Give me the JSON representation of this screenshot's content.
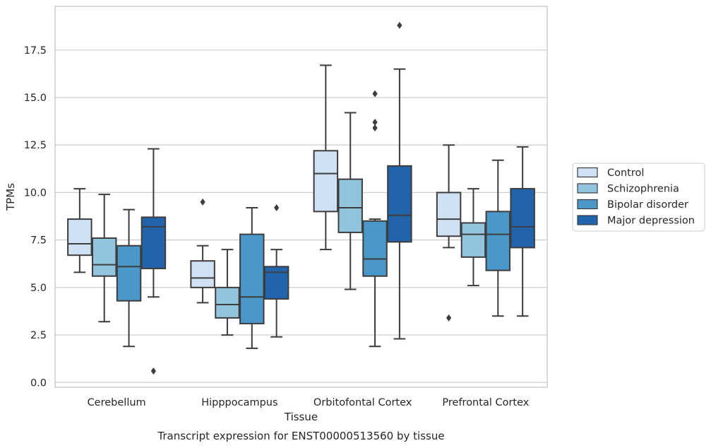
{
  "chart_data": {
    "type": "box",
    "title": "",
    "caption": "Transcript expression for ENST00000513560 by tissue",
    "xlabel": "Tissue",
    "ylabel": "TPMs",
    "ylim": [
      -0.25,
      19.8
    ],
    "yticks": [
      "0.0",
      "2.5",
      "5.0",
      "7.5",
      "10.0",
      "12.5",
      "15.0",
      "17.5"
    ],
    "grid": "horizontal",
    "legend_position": "right",
    "categories": [
      "Cerebellum",
      "Hipppocampus",
      "Orbitofontal Cortex",
      "Prefrontal Cortex"
    ],
    "series": [
      {
        "name": "Control",
        "color": "#cfe1f2",
        "boxes": [
          {
            "whisker_low": 5.8,
            "q1": 6.7,
            "median": 7.3,
            "q3": 8.6,
            "whisker_high": 10.2,
            "outliers": []
          },
          {
            "whisker_low": 4.2,
            "q1": 5.0,
            "median": 5.5,
            "q3": 6.4,
            "whisker_high": 7.2,
            "outliers": [
              9.5
            ]
          },
          {
            "whisker_low": 7.0,
            "q1": 9.0,
            "median": 11.0,
            "q3": 12.2,
            "whisker_high": 16.7,
            "outliers": []
          },
          {
            "whisker_low": 7.1,
            "q1": 7.7,
            "median": 8.6,
            "q3": 10.0,
            "whisker_high": 12.5,
            "outliers": [
              3.4
            ]
          }
        ]
      },
      {
        "name": "Schizophrenia",
        "color": "#93c4de",
        "boxes": [
          {
            "whisker_low": 3.2,
            "q1": 5.6,
            "median": 6.2,
            "q3": 7.6,
            "whisker_high": 9.9,
            "outliers": []
          },
          {
            "whisker_low": 2.5,
            "q1": 3.4,
            "median": 4.1,
            "q3": 5.0,
            "whisker_high": 7.0,
            "outliers": []
          },
          {
            "whisker_low": 4.9,
            "q1": 7.9,
            "median": 9.2,
            "q3": 10.7,
            "whisker_high": 14.2,
            "outliers": []
          },
          {
            "whisker_low": 5.1,
            "q1": 6.6,
            "median": 7.8,
            "q3": 8.4,
            "whisker_high": 10.2,
            "outliers": []
          }
        ]
      },
      {
        "name": "Bipolar disorder",
        "color": "#4a98c9",
        "boxes": [
          {
            "whisker_low": 1.9,
            "q1": 4.3,
            "median": 6.1,
            "q3": 7.2,
            "whisker_high": 9.1,
            "outliers": []
          },
          {
            "whisker_low": 1.8,
            "q1": 3.1,
            "median": 4.5,
            "q3": 7.8,
            "whisker_high": 9.2,
            "outliers": []
          },
          {
            "whisker_low": 1.9,
            "q1": 5.6,
            "median": 6.5,
            "q3": 8.5,
            "whisker_high": 8.6,
            "outliers": [
              13.4,
              13.7,
              15.2
            ]
          },
          {
            "whisker_low": 3.5,
            "q1": 5.9,
            "median": 7.8,
            "q3": 9.0,
            "whisker_high": 11.7,
            "outliers": []
          }
        ]
      },
      {
        "name": "Major depression",
        "color": "#2264ab",
        "boxes": [
          {
            "whisker_low": 4.5,
            "q1": 6.0,
            "median": 8.2,
            "q3": 8.7,
            "whisker_high": 12.3,
            "outliers": [
              0.6
            ]
          },
          {
            "whisker_low": 2.4,
            "q1": 4.4,
            "median": 5.8,
            "q3": 6.1,
            "whisker_high": 7.0,
            "outliers": [
              9.2
            ]
          },
          {
            "whisker_low": 2.3,
            "q1": 7.4,
            "median": 8.8,
            "q3": 11.4,
            "whisker_high": 16.5,
            "outliers": [
              18.8
            ]
          },
          {
            "whisker_low": 3.5,
            "q1": 7.1,
            "median": 8.2,
            "q3": 10.2,
            "whisker_high": 12.4,
            "outliers": []
          }
        ]
      }
    ]
  }
}
